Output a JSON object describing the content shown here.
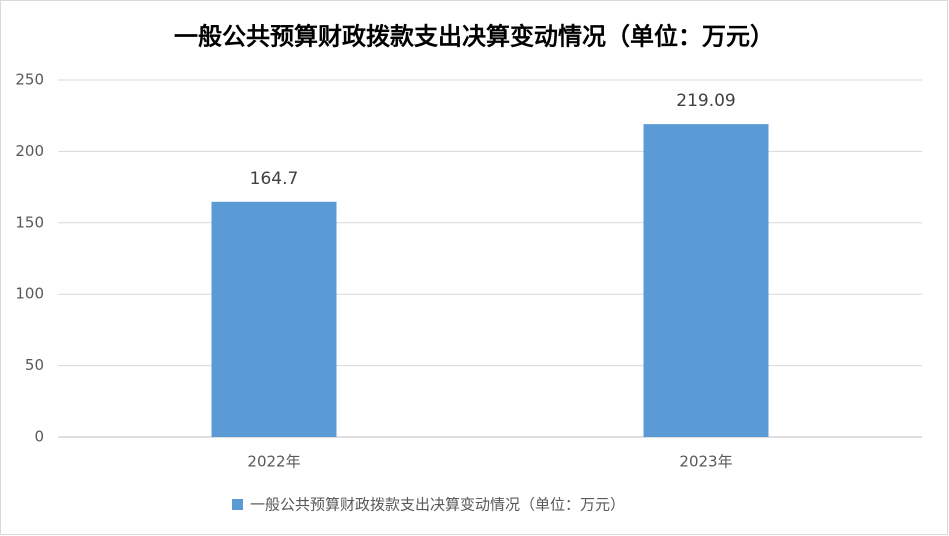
{
  "chart_data": {
    "type": "bar",
    "title": "一般公共预算财政拨款支出决算变动情况（单位：万元）",
    "categories": [
      "2022年",
      "2023年"
    ],
    "series": [
      {
        "name": "一般公共预算财政拨款支出决算变动情况（单位：万元）",
        "color": "#5b9bd5",
        "values": [
          164.7,
          219.09
        ]
      }
    ],
    "ylim": [
      0,
      250
    ],
    "yticks": [
      0,
      50,
      100,
      150,
      200,
      250
    ],
    "grid": true,
    "legend": "bottom"
  }
}
